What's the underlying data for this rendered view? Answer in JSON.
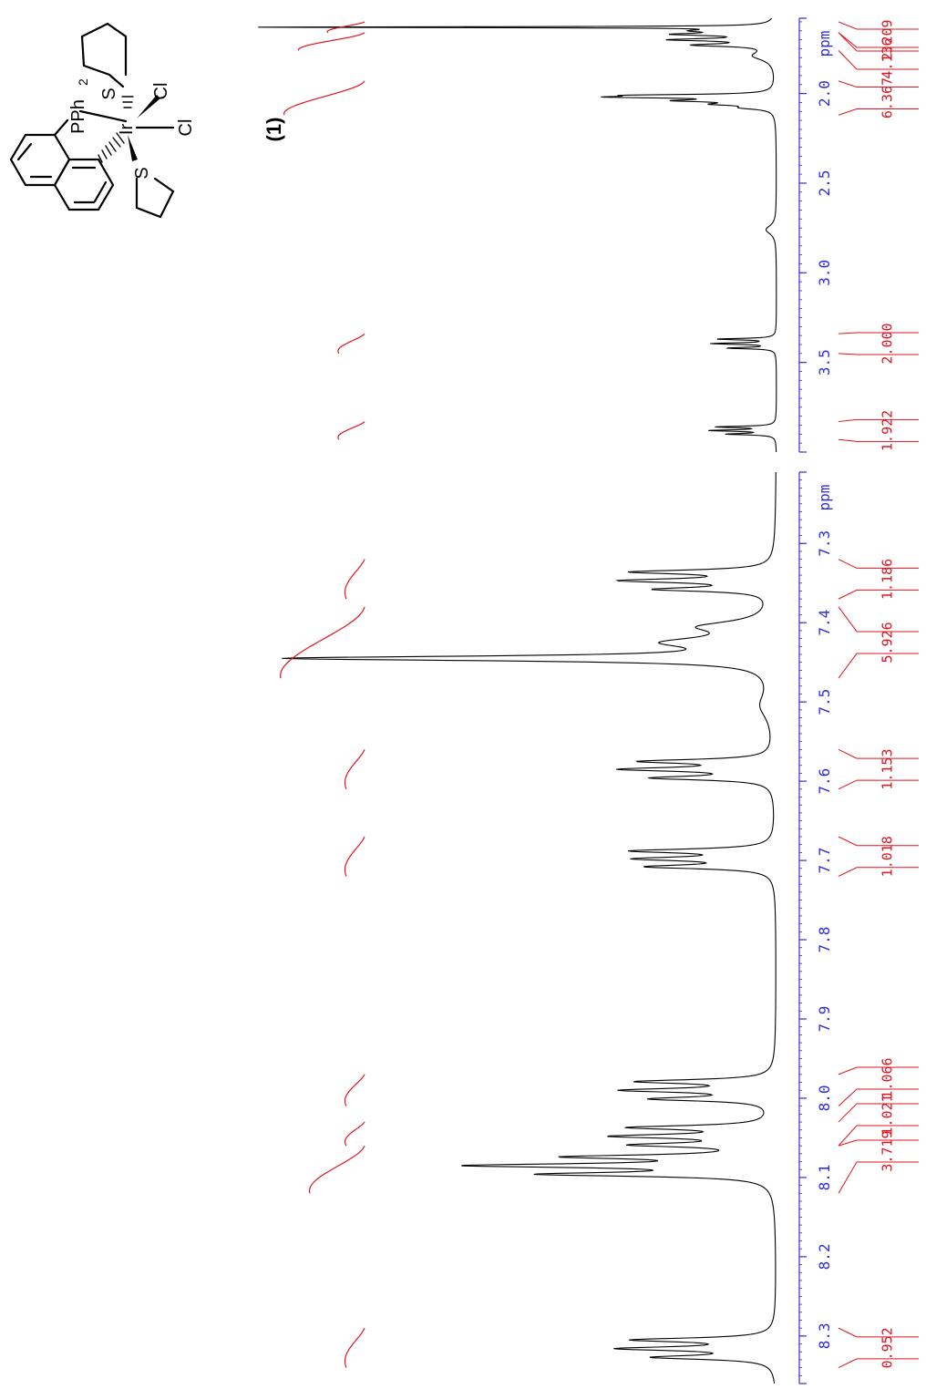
{
  "compound": {
    "label": "(1)",
    "atoms": {
      "phosphine": "PPh",
      "phosphine_sub": "2",
      "metal": "Ir",
      "chloride": "Cl",
      "sulfur": "S"
    }
  },
  "axis_unit": "ppm",
  "colors": {
    "axis": "#2f2fd6",
    "integral": "#e0141e",
    "spectrum": "#000000"
  },
  "chart_data": [
    {
      "type": "line",
      "title": "",
      "xlabel": "ppm",
      "xlim": [
        1.58,
        4.0
      ],
      "ticks": [
        "2.0",
        "2.5",
        "3.0",
        "3.5"
      ],
      "tick_values": [
        2.0,
        2.5,
        3.0,
        3.5
      ],
      "peaks": [
        {
          "ppm": 1.63,
          "height": 0.97,
          "width": 0.003
        },
        {
          "ppm": 1.65,
          "height": 0.12,
          "width": 0.01
        },
        {
          "ppm": 1.67,
          "height": 0.16,
          "width": 0.008
        },
        {
          "ppm": 1.7,
          "height": 0.18,
          "width": 0.008
        },
        {
          "ppm": 1.73,
          "height": 0.14,
          "width": 0.009
        },
        {
          "ppm": 1.79,
          "height": 0.04,
          "width": 0.03
        },
        {
          "ppm": 2.01,
          "height": 0.22,
          "width": 0.006
        },
        {
          "ppm": 2.02,
          "height": 0.25,
          "width": 0.006
        },
        {
          "ppm": 2.04,
          "height": 0.16,
          "width": 0.008
        },
        {
          "ppm": 2.06,
          "height": 0.09,
          "width": 0.008
        },
        {
          "ppm": 2.08,
          "height": 0.05,
          "width": 0.01
        },
        {
          "ppm": 2.76,
          "height": 0.02,
          "width": 0.03
        },
        {
          "ppm": 3.37,
          "height": 0.11,
          "width": 0.005
        },
        {
          "ppm": 3.395,
          "height": 0.12,
          "width": 0.005
        },
        {
          "ppm": 3.42,
          "height": 0.09,
          "width": 0.005
        },
        {
          "ppm": 3.86,
          "height": 0.11,
          "width": 0.005
        },
        {
          "ppm": 3.88,
          "height": 0.12,
          "width": 0.005
        },
        {
          "ppm": 3.9,
          "height": 0.09,
          "width": 0.005
        }
      ],
      "integrals": [
        {
          "from": 1.6,
          "to": 1.66,
          "value": "2.209",
          "depth": 0.1
        },
        {
          "from": 1.66,
          "to": 1.76,
          "value": "4.136",
          "depth": 0.18
        },
        {
          "from": 1.93,
          "to": 2.12,
          "value": "6.367",
          "depth": 0.22
        },
        {
          "from": 3.34,
          "to": 3.45,
          "value": "2.000",
          "depth": 0.07
        },
        {
          "from": 3.83,
          "to": 3.93,
          "value": "1.922",
          "depth": 0.07
        }
      ]
    },
    {
      "type": "line",
      "title": "",
      "xlabel": "ppm",
      "xlim": [
        7.21,
        8.36
      ],
      "ticks": [
        "7.3",
        "7.4",
        "7.5",
        "7.6",
        "7.7",
        "7.8",
        "7.9",
        "8.0",
        "8.1",
        "8.2",
        "8.3"
      ],
      "tick_values": [
        7.3,
        7.4,
        7.5,
        7.6,
        7.7,
        7.8,
        7.9,
        8.0,
        8.1,
        8.2,
        8.3
      ],
      "peaks": [
        {
          "ppm": 7.336,
          "height": 0.26,
          "width": 0.003
        },
        {
          "ppm": 7.347,
          "height": 0.27,
          "width": 0.003
        },
        {
          "ppm": 7.358,
          "height": 0.21,
          "width": 0.003
        },
        {
          "ppm": 7.405,
          "height": 0.12,
          "width": 0.008
        },
        {
          "ppm": 7.425,
          "height": 0.18,
          "width": 0.008
        },
        {
          "ppm": 7.445,
          "height": 0.92,
          "width": 0.0035
        },
        {
          "ppm": 7.505,
          "height": 0.025,
          "width": 0.02
        },
        {
          "ppm": 7.575,
          "height": 0.24,
          "width": 0.003
        },
        {
          "ppm": 7.585,
          "height": 0.27,
          "width": 0.003
        },
        {
          "ppm": 7.596,
          "height": 0.22,
          "width": 0.003
        },
        {
          "ppm": 7.688,
          "height": 0.26,
          "width": 0.003
        },
        {
          "ppm": 7.698,
          "height": 0.24,
          "width": 0.003
        },
        {
          "ppm": 7.708,
          "height": 0.23,
          "width": 0.003
        },
        {
          "ppm": 7.979,
          "height": 0.25,
          "width": 0.003
        },
        {
          "ppm": 7.99,
          "height": 0.27,
          "width": 0.003
        },
        {
          "ppm": 8.001,
          "height": 0.22,
          "width": 0.003
        },
        {
          "ppm": 8.037,
          "height": 0.26,
          "width": 0.003
        },
        {
          "ppm": 8.048,
          "height": 0.28,
          "width": 0.003
        },
        {
          "ppm": 8.059,
          "height": 0.24,
          "width": 0.003
        },
        {
          "ppm": 8.074,
          "height": 0.36,
          "width": 0.003
        },
        {
          "ppm": 8.085,
          "height": 0.55,
          "width": 0.003
        },
        {
          "ppm": 8.096,
          "height": 0.42,
          "width": 0.003
        },
        {
          "ppm": 8.305,
          "height": 0.26,
          "width": 0.003
        },
        {
          "ppm": 8.316,
          "height": 0.28,
          "width": 0.003
        },
        {
          "ppm": 8.327,
          "height": 0.22,
          "width": 0.003
        }
      ],
      "integrals": [
        {
          "from": 7.32,
          "to": 7.37,
          "value": "1.186",
          "depth": 0.05
        },
        {
          "from": 7.38,
          "to": 7.47,
          "value": "5.926",
          "depth": 0.23
        },
        {
          "from": 7.56,
          "to": 7.61,
          "value": "1.153",
          "depth": 0.05
        },
        {
          "from": 7.67,
          "to": 7.72,
          "value": "1.018",
          "depth": 0.05
        },
        {
          "from": 7.97,
          "to": 8.01,
          "value": "1.066",
          "depth": 0.05
        },
        {
          "from": 8.03,
          "to": 8.06,
          "value": "1.021",
          "depth": 0.05
        },
        {
          "from": 8.06,
          "to": 8.12,
          "value": "3.719",
          "depth": 0.15
        },
        {
          "from": 8.29,
          "to": 8.34,
          "value": "0.952",
          "depth": 0.05
        }
      ]
    }
  ]
}
